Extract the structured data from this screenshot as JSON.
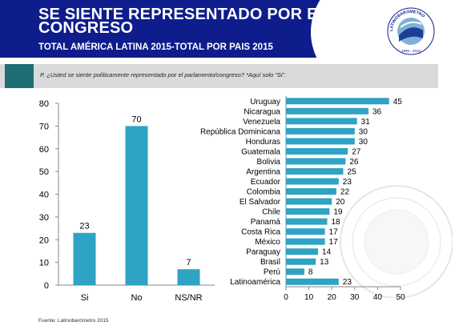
{
  "header": {
    "title": "SE SIENTE REPRESENTADO POR EL CONGRESO",
    "subtitle": "TOTAL AMÉRICA LATINA 2015-TOTAL POR PAIS 2015",
    "logo_text": "LATINOBARÓMETRO",
    "logo_years": "1995 - 2015"
  },
  "question": "P. ¿Usted se siente políticamente representado por el parlamento/congreso? *Aquí solo “Si”.",
  "source": "Fuente: Latinobarómetro 2015",
  "colors": {
    "header": "#0f1d8c",
    "bar": "#2ea3c4",
    "question_bar": "#d9dadb",
    "accent": "#1f6e75"
  },
  "chart_data": [
    {
      "type": "bar",
      "orientation": "vertical",
      "categories": [
        "Si",
        "No",
        "NS/NR"
      ],
      "values": [
        23,
        70,
        7
      ],
      "ylim": [
        0,
        80
      ],
      "yticks": [
        0,
        10,
        20,
        30,
        40,
        50,
        60,
        70,
        80
      ],
      "grid": false
    },
    {
      "type": "bar",
      "orientation": "horizontal",
      "categories": [
        "Uruguay",
        "Nicaragua",
        "Venezuela",
        "República Dominicana",
        "Honduras",
        "Guatemala",
        "Bolivia",
        "Argentina",
        "Ecuador",
        "Colombia",
        "El Salvador",
        "Chile",
        "Panamá",
        "Costa Rica",
        "México",
        "Paraguay",
        "Brasil",
        "Perú",
        "Latinoamérica"
      ],
      "values": [
        45,
        36,
        31,
        30,
        30,
        27,
        26,
        25,
        23,
        22,
        20,
        19,
        18,
        17,
        17,
        14,
        13,
        8,
        23
      ],
      "xlim": [
        0,
        50
      ],
      "xticks": [
        0,
        10,
        20,
        30,
        40,
        50
      ],
      "grid": false
    }
  ]
}
